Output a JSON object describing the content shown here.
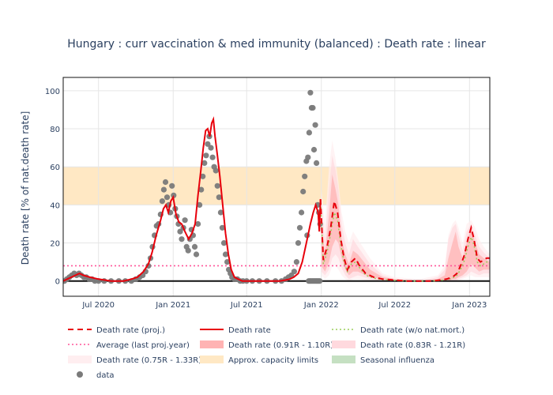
{
  "chart_data": {
    "type": "line",
    "title": "Hungary : curr vaccination & med immunity (balanced) : Death rate : linear",
    "xlabel": "",
    "ylabel": "Death rate [% of nat.death rate]",
    "xlim": [
      "2020-04-05",
      "2023-02-20"
    ],
    "ylim": [
      -8,
      107
    ],
    "yticks": [
      0,
      20,
      40,
      60,
      80,
      100
    ],
    "xticks": [
      {
        "date": "2020-07-01",
        "label": "Jul 2020"
      },
      {
        "date": "2021-01-01",
        "label": "Jan 2021"
      },
      {
        "date": "2021-07-01",
        "label": "Jul 2021"
      },
      {
        "date": "2022-01-01",
        "label": "Jan 2022"
      },
      {
        "date": "2022-07-01",
        "label": "Jul 2022"
      },
      {
        "date": "2023-01-01",
        "label": "Jan 2023"
      }
    ],
    "capacity_band": [
      40,
      60
    ],
    "average_last_proj_year": 8,
    "grid": true,
    "legend_position": "bottom",
    "colors": {
      "proj": "#e8000b",
      "actual": "#e8000b",
      "wo_natmort": "#9acd5a",
      "average": "#ff5599",
      "band1": "#ffb3b3",
      "band2": "#ffd9de",
      "band3": "#ffeef0",
      "capacity": "#ffe8c4",
      "influenza": "#c5e0c2",
      "data": "#7a7a7a"
    },
    "series": [
      {
        "name": "Death rate",
        "x": [
          "2020-04-05",
          "2020-04-15",
          "2020-04-25",
          "2020-05-05",
          "2020-05-15",
          "2020-05-25",
          "2020-06-10",
          "2020-07-01",
          "2020-08-01",
          "2020-09-01",
          "2020-09-20",
          "2020-10-05",
          "2020-10-20",
          "2020-11-01",
          "2020-11-10",
          "2020-11-20",
          "2020-12-01",
          "2020-12-08",
          "2020-12-14",
          "2020-12-20",
          "2020-12-26",
          "2021-01-01",
          "2021-01-08",
          "2021-01-15",
          "2021-01-22",
          "2021-01-30",
          "2021-02-08",
          "2021-02-16",
          "2021-02-24",
          "2021-03-03",
          "2021-03-10",
          "2021-03-16",
          "2021-03-22",
          "2021-03-27",
          "2021-04-01",
          "2021-04-06",
          "2021-04-10",
          "2021-04-14",
          "2021-04-20",
          "2021-04-26",
          "2021-05-03",
          "2021-05-10",
          "2021-05-17",
          "2021-05-24",
          "2021-06-01",
          "2021-06-10",
          "2021-06-20",
          "2021-07-01",
          "2021-08-01",
          "2021-09-01",
          "2021-09-20",
          "2021-10-05",
          "2021-10-15",
          "2021-10-25",
          "2021-11-05",
          "2021-11-15",
          "2021-11-25",
          "2021-12-05",
          "2021-12-12",
          "2021-12-18",
          "2021-12-24",
          "2021-12-27",
          "2021-12-30"
        ],
        "values": [
          0,
          1,
          2,
          3,
          4,
          3,
          2,
          1,
          0,
          0,
          1,
          2,
          5,
          9,
          15,
          24,
          32,
          38,
          40,
          36,
          42,
          44,
          35,
          31,
          30,
          26,
          22,
          25,
          30,
          45,
          58,
          70,
          79,
          80,
          76,
          83,
          85,
          76,
          66,
          55,
          40,
          25,
          14,
          6,
          2,
          1,
          0,
          0,
          0,
          0,
          0,
          0.5,
          1,
          2,
          4,
          10,
          20,
          30,
          36,
          40,
          36,
          26,
          43
        ]
      },
      {
        "name": "Death rate (proj.)",
        "x": [
          "2021-12-30",
          "2022-01-06",
          "2022-01-15",
          "2022-01-24",
          "2022-02-02",
          "2022-02-10",
          "2022-02-18",
          "2022-02-26",
          "2022-03-06",
          "2022-03-16",
          "2022-03-26",
          "2022-04-05",
          "2022-04-20",
          "2022-05-10",
          "2022-06-01",
          "2022-07-01",
          "2022-08-01",
          "2022-09-01",
          "2022-10-01",
          "2022-10-20",
          "2022-11-05",
          "2022-11-20",
          "2022-12-01",
          "2022-12-10",
          "2022-12-20",
          "2022-12-28",
          "2023-01-05",
          "2023-01-12",
          "2023-01-20",
          "2023-01-28",
          "2023-02-05",
          "2023-02-12",
          "2023-02-20"
        ],
        "values": [
          43,
          11,
          18,
          28,
          42,
          36,
          22,
          12,
          6,
          10,
          12,
          8,
          4,
          2,
          1,
          0.5,
          0,
          0,
          0,
          0.5,
          1,
          2,
          4,
          8,
          14,
          22,
          28,
          22,
          12,
          10,
          11,
          12,
          12
        ]
      },
      {
        "name": "Death rate (w/o nat.mort.)",
        "x": [
          "2021-12-30",
          "2022-01-06",
          "2022-01-15",
          "2022-01-24",
          "2022-02-02",
          "2022-02-10",
          "2022-02-18",
          "2022-02-26",
          "2022-03-06",
          "2022-03-16",
          "2022-03-26",
          "2022-04-05",
          "2022-04-20",
          "2022-05-10",
          "2022-06-01",
          "2022-07-01",
          "2022-08-01",
          "2022-09-01",
          "2022-10-01",
          "2022-10-20",
          "2022-11-05",
          "2022-11-20",
          "2022-12-01",
          "2022-12-10",
          "2022-12-20",
          "2022-12-28",
          "2023-01-05",
          "2023-01-12",
          "2023-01-20",
          "2023-01-28",
          "2023-02-05",
          "2023-02-12",
          "2023-02-20"
        ],
        "values": [
          43,
          9,
          15,
          25,
          36,
          32,
          19,
          10,
          5,
          9,
          10,
          7,
          3,
          1.5,
          0.8,
          0.3,
          0,
          0,
          0,
          0.3,
          0.8,
          1.5,
          3,
          6,
          11,
          18,
          23,
          19,
          10,
          8,
          9,
          10,
          10
        ]
      },
      {
        "name": "Average (last proj.year)",
        "x": [
          "2020-04-05",
          "2023-02-20"
        ],
        "values": [
          8,
          8
        ]
      }
    ],
    "bands": [
      {
        "name": "Death rate (0.91R - 1.10R)",
        "x": [
          "2022-01-01",
          "2022-01-10",
          "2022-01-20",
          "2022-01-28",
          "2022-02-05",
          "2022-02-12",
          "2022-02-20",
          "2022-03-01",
          "2022-03-10",
          "2022-03-20",
          "2022-04-01",
          "2022-05-01",
          "2022-06-01",
          "2022-07-01",
          "2022-09-01",
          "2022-10-15",
          "2022-11-01",
          "2022-11-10",
          "2022-11-20",
          "2022-11-28",
          "2022-12-05",
          "2022-12-15",
          "2022-12-25",
          "2023-01-05",
          "2023-01-15",
          "2023-01-25",
          "2023-02-05",
          "2023-02-20"
        ],
        "low": [
          8,
          5,
          10,
          18,
          22,
          20,
          12,
          6,
          3,
          5,
          5,
          2,
          1,
          0,
          0,
          0,
          0,
          0,
          1,
          1,
          2,
          3,
          5,
          9,
          7,
          5,
          6,
          6
        ],
        "high": [
          30,
          15,
          35,
          56,
          48,
          40,
          22,
          14,
          9,
          16,
          14,
          6,
          2,
          1,
          0,
          1,
          3,
          12,
          20,
          26,
          18,
          12,
          20,
          28,
          20,
          14,
          12,
          10
        ]
      },
      {
        "name": "Death rate (0.83R - 1.21R)",
        "x": [
          "2022-01-01",
          "2022-01-10",
          "2022-01-20",
          "2022-01-28",
          "2022-02-05",
          "2022-02-12",
          "2022-02-20",
          "2022-03-01",
          "2022-03-10",
          "2022-03-20",
          "2022-04-01",
          "2022-05-01",
          "2022-06-01",
          "2022-07-01",
          "2022-09-01",
          "2022-10-15",
          "2022-11-01",
          "2022-11-10",
          "2022-11-20",
          "2022-11-28",
          "2022-12-05",
          "2022-12-15",
          "2022-12-25",
          "2023-01-05",
          "2023-01-15",
          "2023-01-25",
          "2023-02-05",
          "2023-02-20"
        ],
        "low": [
          5,
          3,
          6,
          12,
          14,
          12,
          7,
          3,
          1,
          2,
          3,
          1,
          0,
          0,
          0,
          0,
          0,
          0,
          0,
          0,
          1,
          2,
          3,
          5,
          4,
          3,
          4,
          4
        ],
        "high": [
          40,
          22,
          48,
          66,
          58,
          48,
          30,
          20,
          14,
          22,
          18,
          9,
          3,
          1,
          0,
          2,
          6,
          22,
          28,
          30,
          24,
          16,
          26,
          30,
          24,
          18,
          15,
          12
        ]
      },
      {
        "name": "Death rate (0.75R - 1.33R)",
        "x": [
          "2022-01-01",
          "2022-01-10",
          "2022-01-20",
          "2022-01-28",
          "2022-02-05",
          "2022-02-12",
          "2022-02-20",
          "2022-03-01",
          "2022-03-10",
          "2022-03-20",
          "2022-04-01",
          "2022-05-01",
          "2022-06-01",
          "2022-07-01",
          "2022-09-01",
          "2022-10-15",
          "2022-11-01",
          "2022-11-10",
          "2022-11-20",
          "2022-11-28",
          "2022-12-05",
          "2022-12-15",
          "2022-12-25",
          "2023-01-05",
          "2023-01-15",
          "2023-01-25",
          "2023-02-05",
          "2023-02-20"
        ],
        "low": [
          3,
          1,
          3,
          8,
          8,
          6,
          3,
          1,
          0,
          1,
          1,
          0,
          0,
          0,
          0,
          0,
          0,
          0,
          0,
          0,
          0,
          1,
          2,
          3,
          2,
          2,
          2,
          2
        ],
        "high": [
          48,
          30,
          60,
          74,
          64,
          52,
          36,
          26,
          20,
          26,
          22,
          12,
          4,
          2,
          1,
          3,
          8,
          24,
          30,
          32,
          28,
          20,
          30,
          32,
          28,
          22,
          18,
          14
        ]
      }
    ],
    "scatter": {
      "name": "data",
      "x": [
        "2020-04-08",
        "2020-04-14",
        "2020-04-20",
        "2020-04-26",
        "2020-05-02",
        "2020-05-08",
        "2020-05-14",
        "2020-05-20",
        "2020-05-26",
        "2020-06-01",
        "2020-06-08",
        "2020-06-15",
        "2020-06-22",
        "2020-07-01",
        "2020-07-15",
        "2020-08-01",
        "2020-08-20",
        "2020-09-05",
        "2020-09-20",
        "2020-10-01",
        "2020-10-10",
        "2020-10-18",
        "2020-10-25",
        "2020-11-01",
        "2020-11-06",
        "2020-11-11",
        "2020-11-16",
        "2020-11-21",
        "2020-11-26",
        "2020-12-01",
        "2020-12-05",
        "2020-12-09",
        "2020-12-13",
        "2020-12-17",
        "2020-12-21",
        "2020-12-25",
        "2020-12-29",
        "2021-01-02",
        "2021-01-06",
        "2021-01-10",
        "2021-01-14",
        "2021-01-18",
        "2021-01-22",
        "2021-01-26",
        "2021-01-30",
        "2021-02-03",
        "2021-02-07",
        "2021-02-11",
        "2021-02-15",
        "2021-02-19",
        "2021-02-23",
        "2021-02-27",
        "2021-03-03",
        "2021-03-07",
        "2021-03-11",
        "2021-03-15",
        "2021-03-19",
        "2021-03-23",
        "2021-03-27",
        "2021-03-31",
        "2021-04-04",
        "2021-04-08",
        "2021-04-12",
        "2021-04-16",
        "2021-04-20",
        "2021-04-24",
        "2021-04-28",
        "2021-05-02",
        "2021-05-06",
        "2021-05-10",
        "2021-05-14",
        "2021-05-18",
        "2021-05-22",
        "2021-05-26",
        "2021-06-01",
        "2021-06-08",
        "2021-06-15",
        "2021-06-22",
        "2021-07-01",
        "2021-07-15",
        "2021-08-01",
        "2021-08-20",
        "2021-09-10",
        "2021-09-25",
        "2021-10-05",
        "2021-10-12",
        "2021-10-19",
        "2021-10-26",
        "2021-11-01",
        "2021-11-05",
        "2021-11-09",
        "2021-11-13",
        "2021-11-17",
        "2021-11-21",
        "2021-11-25",
        "2021-11-29",
        "2021-12-02",
        "2021-12-05",
        "2021-12-08",
        "2021-12-11",
        "2021-12-14",
        "2021-12-17",
        "2021-12-20",
        "2021-12-23",
        "2021-12-26",
        "2021-12-29",
        "2021-11-27",
        "2021-12-01",
        "2021-12-04",
        "2021-12-07",
        "2021-12-10",
        "2021-12-13",
        "2021-12-16",
        "2021-12-19",
        "2021-12-22",
        "2021-12-25",
        "2021-12-28"
      ],
      "values": [
        0,
        1,
        2,
        3,
        4,
        3,
        4,
        3,
        2,
        2,
        1,
        1,
        0,
        0,
        0,
        0,
        0,
        0,
        0,
        1,
        2,
        3,
        5,
        8,
        12,
        18,
        24,
        29,
        30,
        35,
        42,
        48,
        52,
        44,
        40,
        36,
        50,
        45,
        38,
        34,
        30,
        26,
        22,
        28,
        32,
        18,
        16,
        22,
        27,
        24,
        18,
        14,
        30,
        40,
        48,
        55,
        62,
        66,
        72,
        76,
        70,
        65,
        60,
        58,
        50,
        44,
        36,
        28,
        20,
        14,
        10,
        6,
        4,
        2,
        1,
        1,
        0,
        0,
        0,
        0,
        0,
        0,
        0,
        0,
        1,
        2,
        3,
        5,
        10,
        20,
        28,
        36,
        47,
        55,
        63,
        65,
        78,
        99,
        91,
        91,
        69,
        82,
        62,
        40,
        36,
        30,
        24,
        0,
        0,
        0,
        0,
        0,
        0,
        0,
        0,
        0,
        0
      ]
    },
    "legend": [
      {
        "label": "Death rate (proj.)",
        "kind": "dash",
        "color": "#e8000b"
      },
      {
        "label": "Death rate",
        "kind": "line",
        "color": "#e8000b"
      },
      {
        "label": "Death rate (w/o nat.mort.)",
        "kind": "dot",
        "color": "#9acd5a"
      },
      {
        "label": "Average (last proj.year)",
        "kind": "dot",
        "color": "#ff5599"
      },
      {
        "label": "Death rate (0.91R - 1.10R)",
        "kind": "band",
        "color": "#ffb3b3"
      },
      {
        "label": "Death rate (0.83R - 1.21R)",
        "kind": "band",
        "color": "#ffd9de"
      },
      {
        "label": "Death rate (0.75R - 1.33R)",
        "kind": "band",
        "color": "#ffeef0"
      },
      {
        "label": "Approx. capacity limits",
        "kind": "band",
        "color": "#ffe8c4"
      },
      {
        "label": "Seasonal influenza",
        "kind": "band",
        "color": "#c5e0c2"
      },
      {
        "label": "data",
        "kind": "marker",
        "color": "#7a7a7a"
      }
    ]
  }
}
